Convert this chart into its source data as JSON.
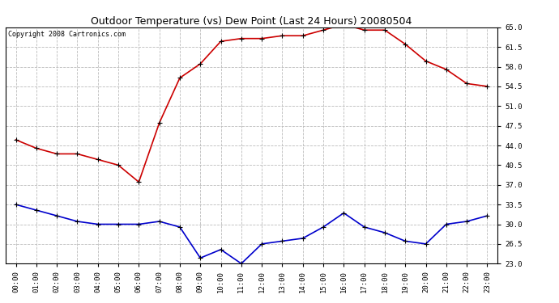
{
  "title": "Outdoor Temperature (vs) Dew Point (Last 24 Hours) 20080504",
  "copyright_text": "Copyright 2008 Cartronics.com",
  "hours": [
    "00:00",
    "01:00",
    "02:00",
    "03:00",
    "04:00",
    "05:00",
    "06:00",
    "07:00",
    "08:00",
    "09:00",
    "10:00",
    "11:00",
    "12:00",
    "13:00",
    "14:00",
    "15:00",
    "16:00",
    "17:00",
    "18:00",
    "19:00",
    "20:00",
    "21:00",
    "22:00",
    "23:00"
  ],
  "temp": [
    45.0,
    43.5,
    42.5,
    42.5,
    41.5,
    40.5,
    37.5,
    48.0,
    56.0,
    58.5,
    62.5,
    63.0,
    63.0,
    63.5,
    63.5,
    64.5,
    65.5,
    64.5,
    64.5,
    62.0,
    59.0,
    57.5,
    55.0,
    54.5
  ],
  "dew": [
    33.5,
    32.5,
    31.5,
    30.5,
    30.0,
    30.0,
    30.0,
    30.5,
    29.5,
    24.0,
    25.5,
    23.0,
    26.5,
    27.0,
    27.5,
    29.5,
    32.0,
    29.5,
    28.5,
    27.0,
    26.5,
    30.0,
    30.5,
    31.5
  ],
  "temp_color": "#cc0000",
  "dew_color": "#0000cc",
  "bg_color": "#ffffff",
  "grid_color": "#bbbbbb",
  "title_color": "#000000",
  "ylim_min": 23.0,
  "ylim_max": 65.0,
  "yticks": [
    23.0,
    26.5,
    30.0,
    33.5,
    37.0,
    40.5,
    44.0,
    47.5,
    51.0,
    54.5,
    58.0,
    61.5,
    65.0
  ],
  "title_fontsize": 9,
  "tick_fontsize": 6.5,
  "copyright_fontsize": 6
}
